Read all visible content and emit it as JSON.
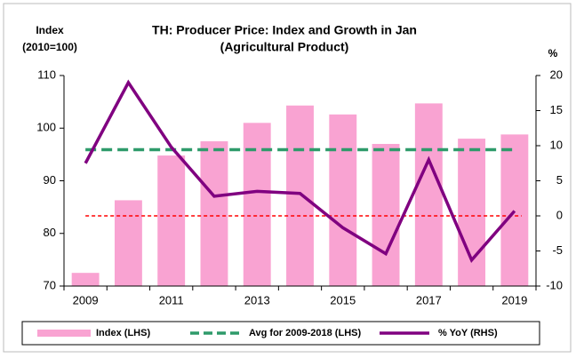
{
  "chart_data": {
    "type": "combo",
    "title": [
      "TH: Producer Price: Index and Growth in Jan",
      "(Agricultural Product)"
    ],
    "ylabel": [
      "Index",
      "(2010=100)"
    ],
    "y2label": "%",
    "categories": [
      "2009",
      null,
      "2011",
      null,
      "2013",
      null,
      "2015",
      null,
      "2017",
      null,
      "2019"
    ],
    "series": [
      {
        "name": "Index (LHS)",
        "type": "bar",
        "color": "#f9a3d2",
        "axis": "y",
        "values": [
          72.5,
          86.3,
          94.8,
          97.5,
          101.0,
          104.3,
          102.6,
          97.0,
          104.7,
          98.0,
          98.8
        ]
      },
      {
        "name": "Avg for 2009-2018 (LHS)",
        "type": "line",
        "dash": true,
        "color": "#2e9a6a",
        "axis": "y",
        "values": [
          95.9,
          95.9,
          95.9,
          95.9,
          95.9,
          95.9,
          95.9,
          95.9,
          95.9,
          95.9,
          95.9
        ]
      },
      {
        "name": "% YoY (RHS)",
        "type": "line",
        "dash": false,
        "color": "#800080",
        "axis": "y2",
        "values": [
          7.5,
          19.0,
          9.8,
          2.8,
          3.5,
          3.2,
          -1.7,
          -5.4,
          8.0,
          -6.3,
          0.7
        ]
      }
    ],
    "reference_line": {
      "axis": "y2",
      "value": 0,
      "color": "#ff0000"
    },
    "ylim": [
      70,
      110
    ],
    "yticks": [
      70,
      80,
      90,
      100,
      110
    ],
    "y2lim": [
      -10,
      20
    ],
    "y2ticks": [
      -10,
      -5,
      0,
      5,
      10,
      15,
      20
    ],
    "legend": "bottom"
  }
}
